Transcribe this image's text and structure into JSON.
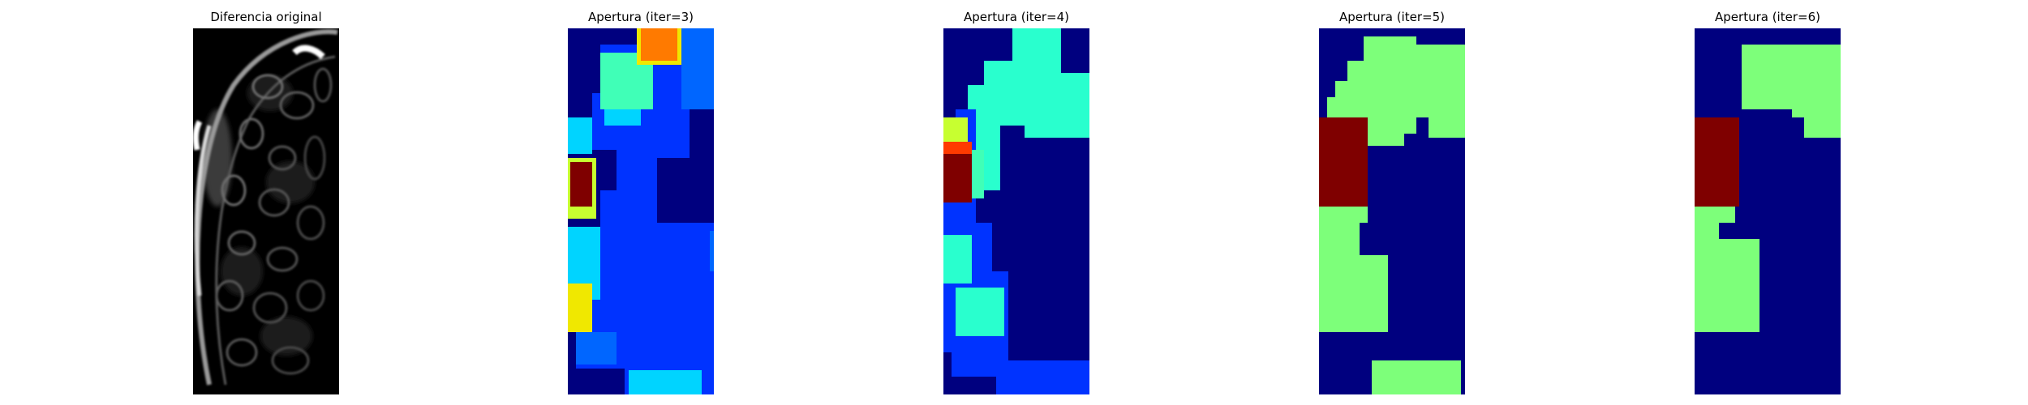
{
  "figure": {
    "layout": "1x5 image panels",
    "background": "#ffffff",
    "axes": "off"
  },
  "chart_data": [
    {
      "type": "heatmap",
      "title": "Diferencia original",
      "colormap": "gray",
      "grid": false,
      "axes": "off"
    },
    {
      "type": "heatmap",
      "title": "Apertura (iter=3)",
      "colormap": "jet",
      "grid": false,
      "axes": "off"
    },
    {
      "type": "heatmap",
      "title": "Apertura (iter=4)",
      "colormap": "jet",
      "grid": false,
      "axes": "off"
    },
    {
      "type": "heatmap",
      "title": "Apertura (iter=5)",
      "colormap": "jet",
      "grid": false,
      "axes": "off"
    },
    {
      "type": "heatmap",
      "title": "Apertura (iter=6)",
      "colormap": "jet",
      "grid": false,
      "axes": "off"
    }
  ],
  "colors": {
    "jet_navy": "#00007f",
    "jet_blue": "#0033ff",
    "jet_mid_blue": "#0066ff",
    "jet_cyan": "#00d4ff",
    "jet_aqua": "#29ffce",
    "jet_mint": "#40ffb7",
    "jet_green": "#7dff7a",
    "jet_yellow_green": "#c7ff30",
    "jet_yellow": "#f0e800",
    "jet_orange": "#ff7a00",
    "jet_red_orange": "#ff3a00",
    "jet_dark_red": "#7f0000"
  }
}
